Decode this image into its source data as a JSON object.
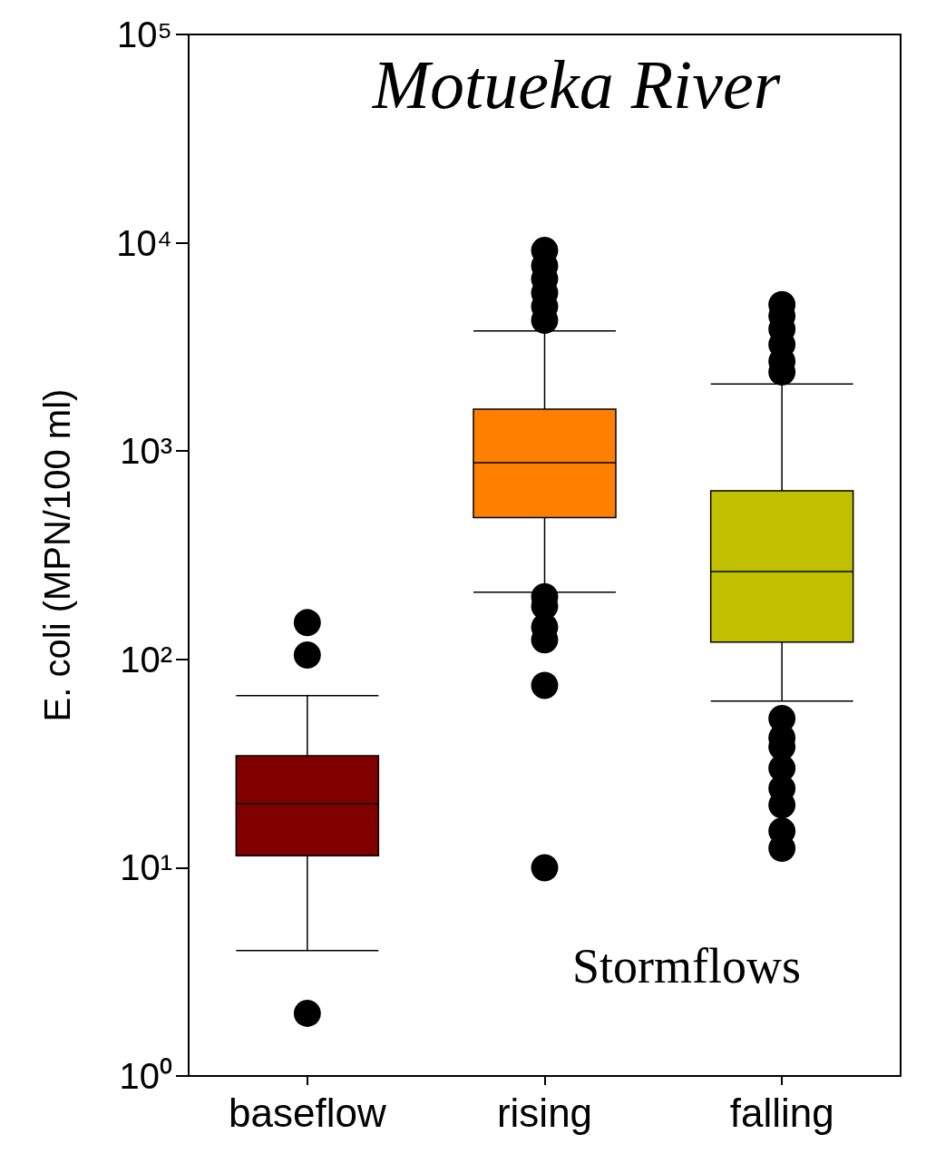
{
  "chart_data": {
    "type": "box",
    "title": "Motueka River",
    "ylabel": "E. coli (MPN/100 ml)",
    "annotations": [
      "Stormflows"
    ],
    "categories": [
      "baseflow",
      "rising",
      "falling"
    ],
    "colors": [
      "#800000",
      "#ff8000",
      "#c0c000"
    ],
    "log": true,
    "grid": false,
    "ylim": [
      1,
      100000
    ],
    "yticks": [
      {
        "value": 1,
        "label": "10⁰"
      },
      {
        "value": 10,
        "label": "10¹"
      },
      {
        "value": 100,
        "label": "10²"
      },
      {
        "value": 1000,
        "label": "10³"
      },
      {
        "value": 10000,
        "label": "10⁴"
      },
      {
        "value": 100000,
        "label": "10⁵"
      }
    ],
    "boxes": [
      {
        "low": 4,
        "q1": 11.4,
        "median": 20.3,
        "q3": 34.5,
        "high": 67,
        "outliers": [
          2,
          105,
          150
        ]
      },
      {
        "low": 210,
        "q1": 480,
        "median": 880,
        "q3": 1590,
        "high": 3770,
        "outliers": [
          9200,
          7750,
          6700,
          5750,
          4950,
          4250,
          200,
          180,
          143,
          124,
          75,
          10
        ]
      },
      {
        "low": 63,
        "q1": 121,
        "median": 264,
        "q3": 644,
        "high": 2100,
        "outliers": [
          5050,
          4450,
          3850,
          3250,
          2700,
          2400,
          52,
          42,
          38,
          30,
          24,
          20,
          15,
          12.4
        ]
      }
    ]
  }
}
